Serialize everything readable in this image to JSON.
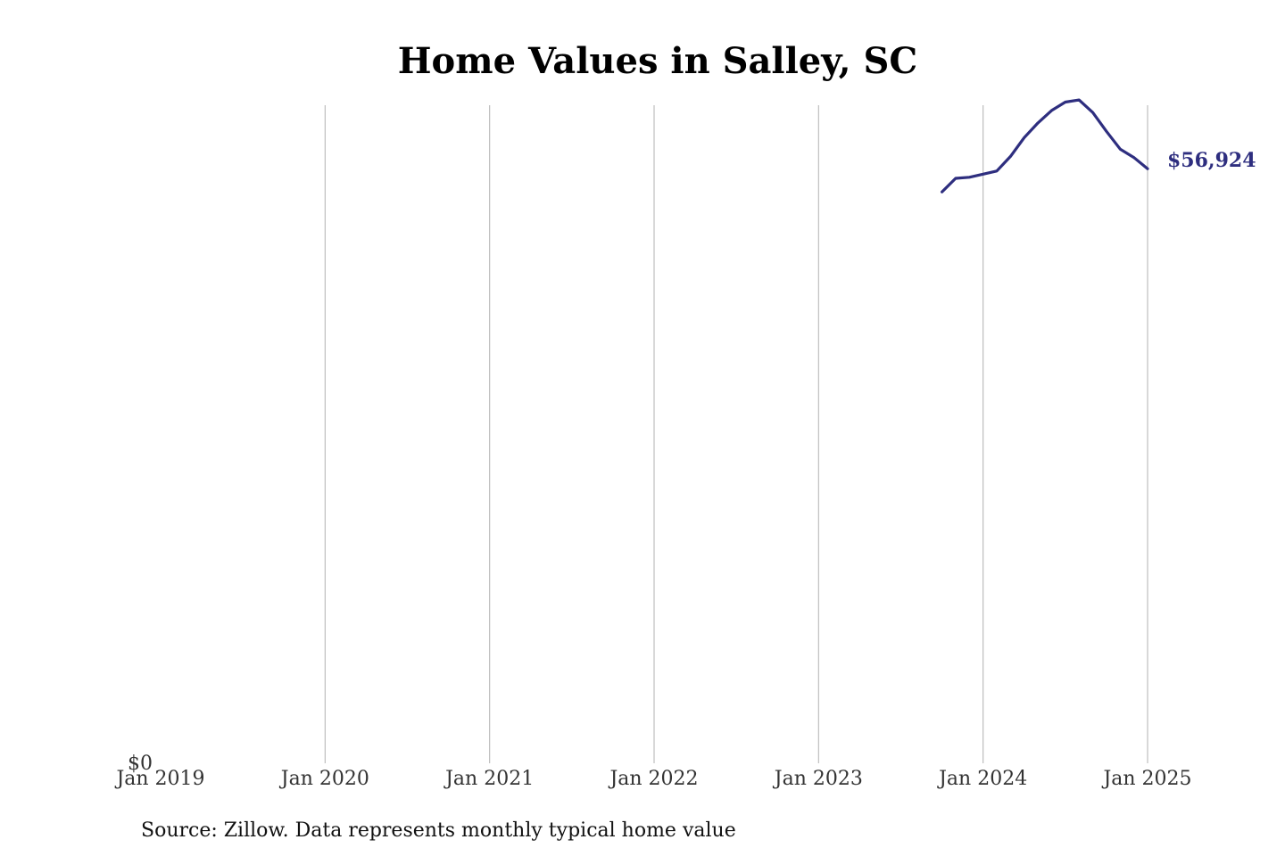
{
  "chart_data": {
    "type": "line",
    "title": "Home Values in Salley, SC",
    "xlabel": "",
    "ylabel": "",
    "x_ticks": [
      "Jan 2019",
      "Jan 2020",
      "Jan 2021",
      "Jan 2022",
      "Jan 2023",
      "Jan 2024",
      "Jan 2025"
    ],
    "y_ticks": [
      "$0"
    ],
    "xlim": [
      "2019-01",
      "2025-01"
    ],
    "ylim": [
      0,
      63000
    ],
    "grid": "vertical",
    "line_color": "#2e2e7f",
    "end_label": "$56,924",
    "source_note": "Source: Zillow. Data represents monthly typical home value",
    "series": [
      {
        "x": [
          "2023-10",
          "2023-11",
          "2023-12",
          "2024-01",
          "2024-02",
          "2024-03",
          "2024-04",
          "2024-05",
          "2024-06",
          "2024-07",
          "2024-08",
          "2024-09",
          "2024-10",
          "2024-11",
          "2024-12",
          "2025-01"
        ],
        "values": [
          54700,
          56000,
          56100,
          56400,
          56700,
          58100,
          59900,
          61300,
          62500,
          63300,
          63500,
          62300,
          60500,
          58800,
          58000,
          56924
        ]
      }
    ]
  }
}
